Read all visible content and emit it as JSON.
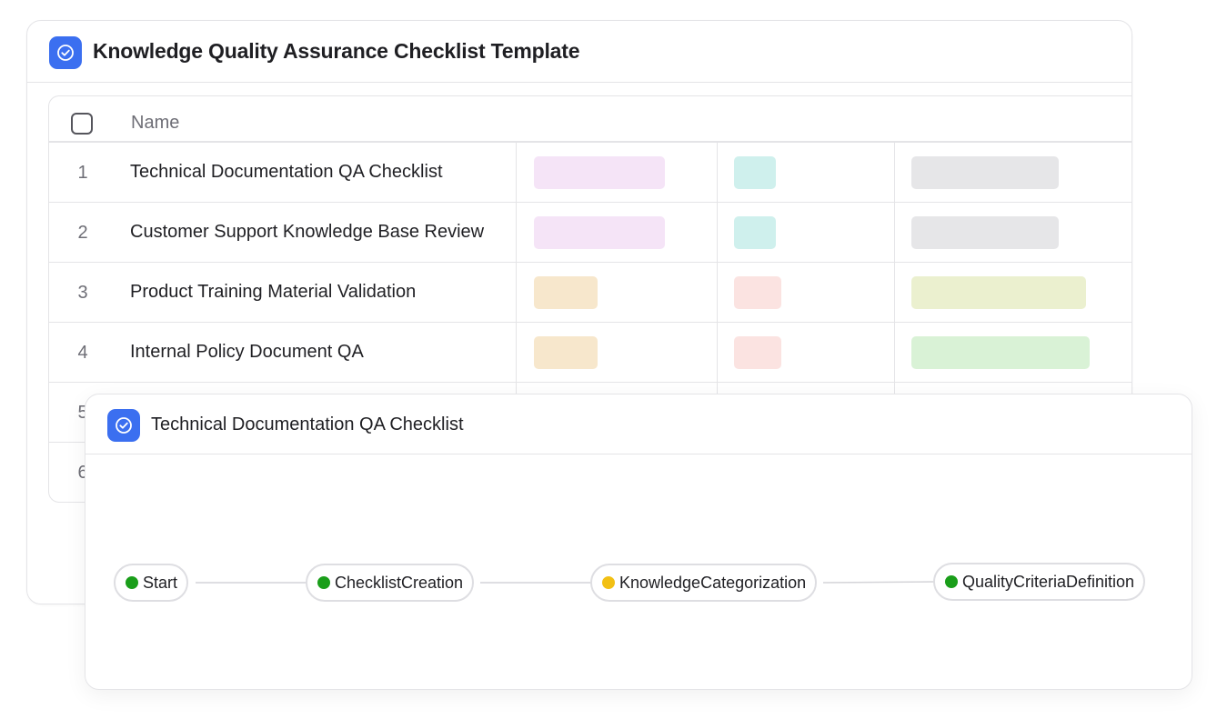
{
  "template": {
    "title": "Knowledge Quality Assurance Checklist Template",
    "column_name": "Name",
    "rows": [
      {
        "num": "1",
        "name": "Technical Documentation QA Checklist",
        "tags": [
          "#f5e4f7",
          "#cff0ed",
          "#e6e6e8"
        ]
      },
      {
        "num": "2",
        "name": "Customer Support Knowledge Base Review",
        "tags": [
          "#f5e4f7",
          "#cff0ed",
          "#e6e6e8"
        ]
      },
      {
        "num": "3",
        "name": "Product Training Material Validation",
        "tags": [
          "#f7e7cc",
          "#fbe3e1",
          "#ebf0cf"
        ]
      },
      {
        "num": "4",
        "name": "Internal Policy Document QA",
        "tags": [
          "#f7e7cc",
          "#fbe3e1",
          "#d9f2d6"
        ]
      },
      {
        "num": "5",
        "name": ""
      },
      {
        "num": "6",
        "name": ""
      }
    ]
  },
  "workflow": {
    "title": "Technical Documentation QA Checklist",
    "steps": [
      {
        "label": "Start",
        "status_color": "#1a9e1a"
      },
      {
        "label": "ChecklistCreation",
        "status_color": "#1a9e1a"
      },
      {
        "label": "KnowledgeCategorization",
        "status_color": "#f2c014"
      },
      {
        "label": "QualityCriteriaDefinition",
        "status_color": "#1a9e1a"
      }
    ]
  },
  "colors": {
    "accent": "#3b6ff0"
  }
}
